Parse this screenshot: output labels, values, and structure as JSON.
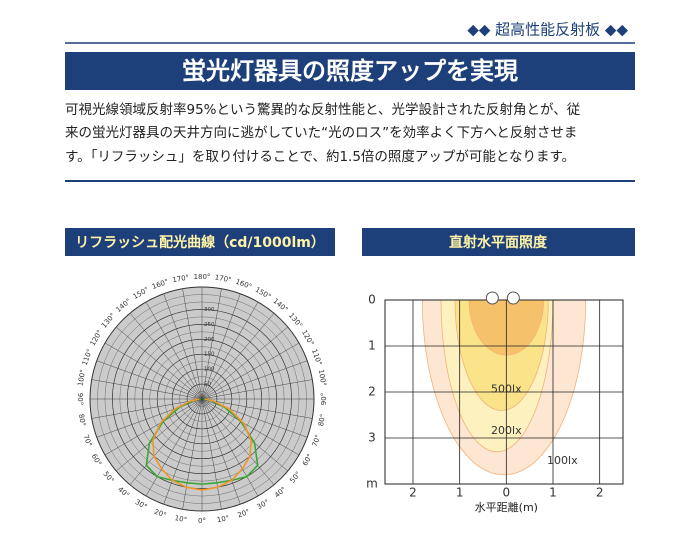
{
  "header": {
    "tag": "◆◆ 超高性能反射板 ◆◆",
    "title": "蛍光灯器具の照度アップを実現",
    "paragraph": [
      "可視光線領域反射率95%という驚異的な反射性能と、光学設計された反射角とが、従",
      "来の蛍光灯器具の天井方向に逃がしていた“光のロス”を効率よく下方へと反射させま",
      "す。「リフラッシュ」を取り付けることで、約1.5倍の照度アップが可能となります。"
    ]
  },
  "chart_data": [
    {
      "type": "polar",
      "title": "リフラッシュ配光曲線（cd/1000lm）",
      "angles": [
        0,
        10,
        20,
        30,
        40,
        50,
        60,
        70,
        80,
        90
      ],
      "series": [
        {
          "color": "#3aa635",
          "values": [
            285,
            285,
            290,
            300,
            290,
            230,
            150,
            80,
            30,
            5
          ]
        },
        {
          "color": "#f0962a",
          "values": [
            305,
            300,
            290,
            270,
            250,
            215,
            160,
            95,
            40,
            10
          ]
        }
      ],
      "rlim": [
        0,
        375
      ],
      "rticks": [
        50,
        100,
        150,
        200,
        250,
        300
      ],
      "angle_ticks": [
        {
          "value": 0,
          "label": "0°"
        },
        {
          "value": 10,
          "label": "10°"
        },
        {
          "value": 20,
          "label": "20°"
        },
        {
          "value": 30,
          "label": "30°"
        },
        {
          "value": 40,
          "label": "40°"
        },
        {
          "value": 50,
          "label": "50°"
        },
        {
          "value": 60,
          "label": "60°"
        },
        {
          "value": 70,
          "label": "70°"
        },
        {
          "value": 80,
          "label": "80°"
        },
        {
          "value": 90,
          "label": "90°"
        },
        {
          "value": 100,
          "label": "100°"
        },
        {
          "value": 110,
          "label": "110°"
        },
        {
          "value": 120,
          "label": "120°"
        },
        {
          "value": 130,
          "label": "130°"
        },
        {
          "value": 140,
          "label": "140°"
        },
        {
          "value": 150,
          "label": "150°"
        },
        {
          "value": 160,
          "label": "160°"
        },
        {
          "value": 170,
          "label": "170°"
        },
        {
          "value": 180,
          "label": "180°"
        }
      ]
    },
    {
      "type": "contour",
      "title": "直射水平面照度",
      "xlabel": "水平距離(m)",
      "xlim": [
        -2.6,
        2.5
      ],
      "ylim": [
        0,
        4
      ],
      "xticks": [
        {
          "value": -2,
          "label": "2"
        },
        {
          "value": -1,
          "label": "1"
        },
        0,
        1,
        2
      ],
      "yticks": [
        0,
        1,
        2,
        3,
        {
          "value": 4,
          "label": "m"
        }
      ],
      "grid": true,
      "levels": [
        {
          "value": 100,
          "label": "100lx",
          "color": "#fde7d2",
          "x_range": [
            -1.8,
            1.7
          ],
          "y_range": [
            0,
            3.8
          ]
        },
        {
          "value": 200,
          "label": "200lx",
          "color": "#fdf2bf",
          "x_range": [
            -1.4,
            1.0
          ],
          "y_range": [
            0,
            3.3
          ]
        },
        {
          "value": 500,
          "label": "500lx",
          "color": "#fbe38a",
          "x_range": [
            -1.1,
            0.9
          ],
          "y_range": [
            0,
            2.4
          ]
        }
      ]
    }
  ]
}
